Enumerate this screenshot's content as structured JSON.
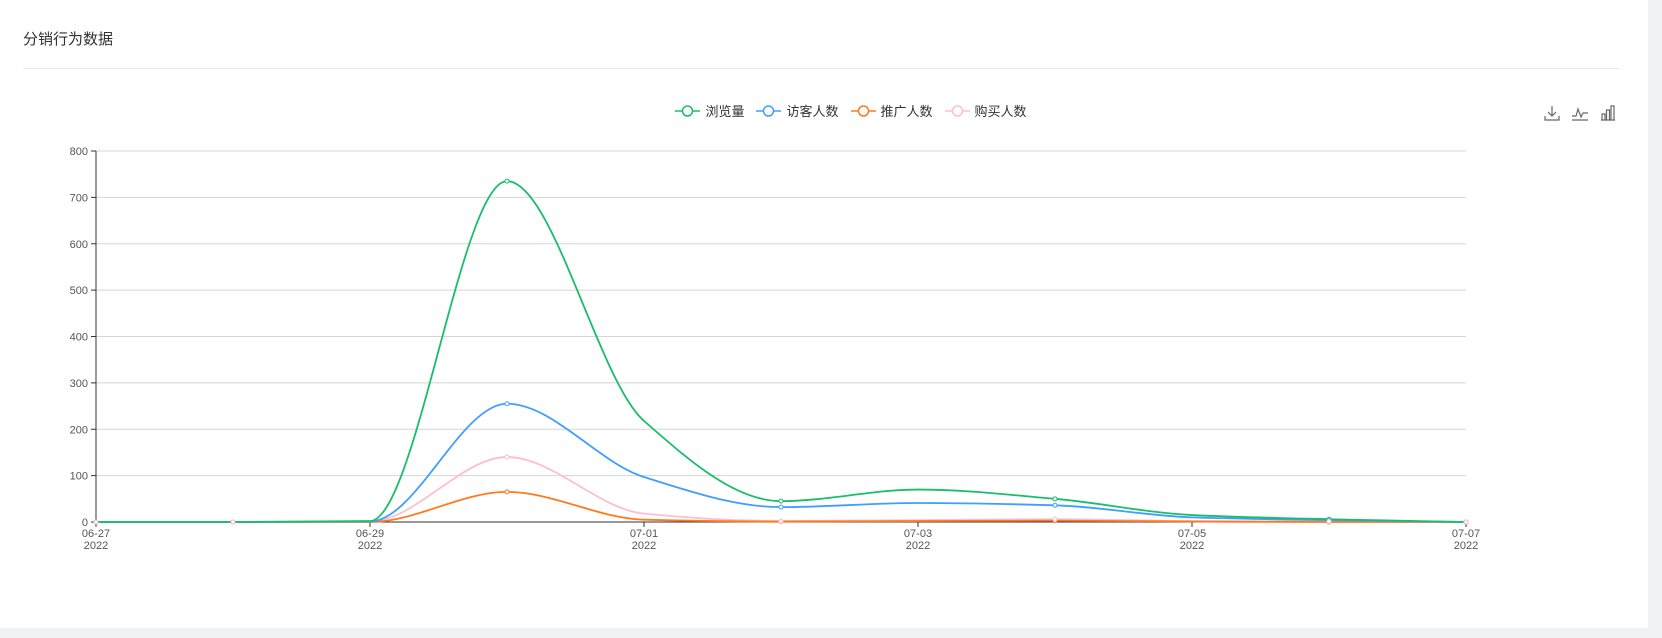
{
  "header": {
    "title": "分销行为数据"
  },
  "toolbox": {
    "items": [
      {
        "icon": "download-icon"
      },
      {
        "icon": "line-chart-icon"
      },
      {
        "icon": "bar-chart-icon"
      }
    ]
  },
  "chart_data": {
    "type": "line",
    "title": "",
    "xlabel": "",
    "ylabel": "",
    "x": [
      "2022-06-27",
      "2022-06-28",
      "2022-06-29",
      "2022-06-30",
      "2022-07-01",
      "2022-07-02",
      "2022-07-03",
      "2022-07-04",
      "2022-07-05",
      "2022-07-06",
      "2022-07-07"
    ],
    "x_tick_labels": [
      {
        "x": "2022-06-27",
        "line1": "06-27",
        "line2": "2022"
      },
      {
        "x": "2022-06-29",
        "line1": "06-29",
        "line2": "2022"
      },
      {
        "x": "2022-07-01",
        "line1": "07-01",
        "line2": "2022"
      },
      {
        "x": "2022-07-03",
        "line1": "07-03",
        "line2": "2022"
      },
      {
        "x": "2022-07-05",
        "line1": "07-05",
        "line2": "2022"
      },
      {
        "x": "2022-07-07",
        "line1": "07-07",
        "line2": "2022"
      }
    ],
    "y_ticks": [
      "0",
      "100",
      "200",
      "300",
      "400",
      "500",
      "600",
      "700",
      "800"
    ],
    "ylim": [
      0,
      800
    ],
    "grid": true,
    "legend_position": "top-center",
    "smooth": true,
    "series": [
      {
        "name": "浏览量",
        "color": "#19be6b",
        "values": [
          0,
          0,
          2,
          735,
          218,
          45,
          70,
          50,
          15,
          6,
          0
        ]
      },
      {
        "name": "访客人数",
        "color": "#409eff",
        "values": [
          0,
          0,
          1,
          255,
          97,
          32,
          41,
          36,
          10,
          4,
          0
        ]
      },
      {
        "name": "推广人数",
        "color": "#ff7a1a",
        "values": [
          0,
          0,
          0,
          65,
          5,
          1,
          2,
          3,
          1,
          0,
          0
        ]
      },
      {
        "name": "购买人数",
        "color": "#ffbdd0",
        "values": [
          0,
          0,
          1,
          140,
          18,
          2,
          4,
          6,
          2,
          1,
          0
        ]
      }
    ]
  }
}
